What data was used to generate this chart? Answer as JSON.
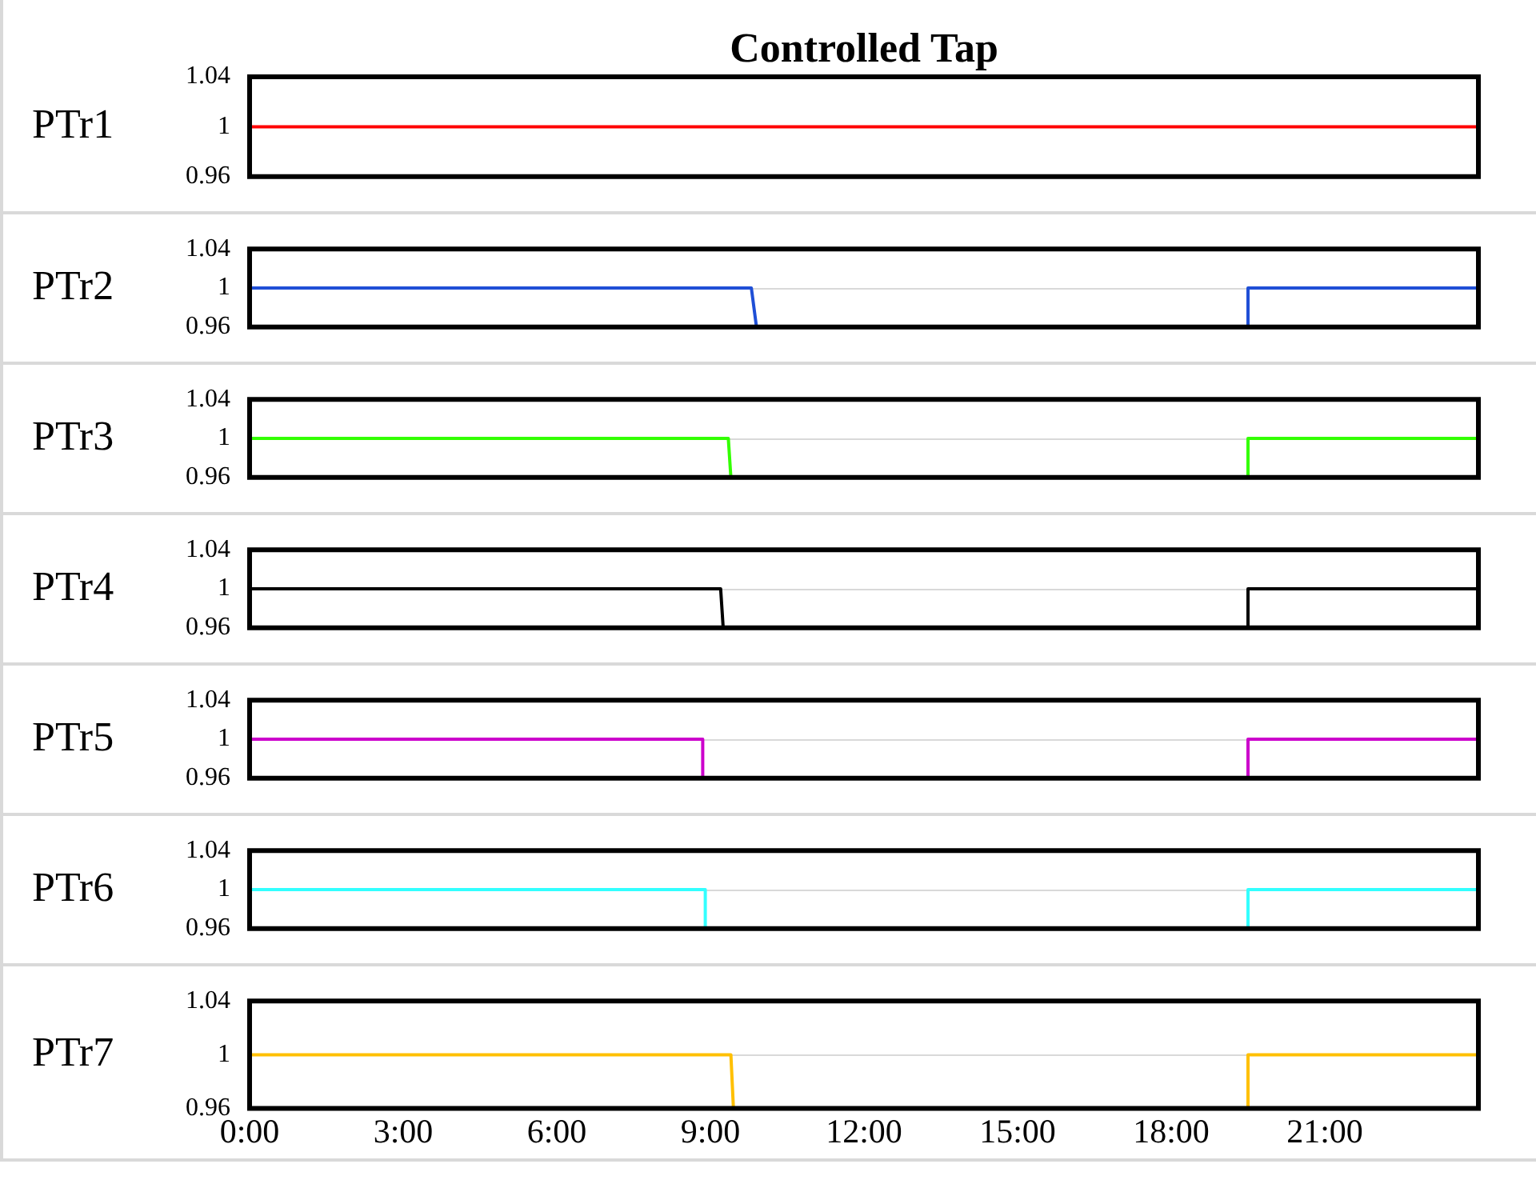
{
  "chart_data": [
    {
      "type": "line",
      "title": "Controlled Tap",
      "ylabel": "PTr1",
      "xlim": [
        0,
        24
      ],
      "ylim": [
        0.96,
        1.04
      ],
      "yticks": [
        0.96,
        1,
        1.04
      ],
      "legend": false,
      "tick_labels": "y",
      "marker": "none",
      "line_style": "solid",
      "series": [
        {
          "color": "#ff0000",
          "x": [
            0,
            24
          ],
          "values": [
            1,
            1
          ]
        }
      ]
    },
    {
      "type": "line",
      "ylabel": "PTr2",
      "xlim": [
        0,
        24
      ],
      "ylim": [
        0.96,
        1.04
      ],
      "yticks": [
        0.96,
        1,
        1.04
      ],
      "grid": "y",
      "legend": false,
      "tick_labels": "y",
      "marker": "none",
      "line_style": "solid",
      "series": [
        {
          "color": "#1f4fd6",
          "x": [
            0,
            9.8,
            9.9,
            19.5,
            19.5,
            24
          ],
          "values": [
            1,
            1,
            0.96,
            0.96,
            1,
            1
          ]
        }
      ]
    },
    {
      "type": "line",
      "ylabel": "PTr3",
      "xlim": [
        0,
        24
      ],
      "ylim": [
        0.96,
        1.04
      ],
      "yticks": [
        0.96,
        1,
        1.04
      ],
      "grid": "y",
      "legend": false,
      "tick_labels": "y",
      "marker": "none",
      "line_style": "solid",
      "series": [
        {
          "color": "#33ff00",
          "x": [
            0,
            9.35,
            9.4,
            19.5,
            19.5,
            24
          ],
          "values": [
            1,
            1,
            0.96,
            0.96,
            1,
            1
          ]
        }
      ]
    },
    {
      "type": "line",
      "ylabel": "PTr4",
      "xlim": [
        0,
        24
      ],
      "ylim": [
        0.96,
        1.04
      ],
      "yticks": [
        0.96,
        1,
        1.04
      ],
      "grid": "y",
      "legend": false,
      "tick_labels": "y",
      "marker": "none",
      "line_style": "solid",
      "series": [
        {
          "color": "#000000",
          "x": [
            0,
            9.2,
            9.25,
            19.5,
            19.5,
            24
          ],
          "values": [
            1,
            1,
            0.96,
            0.96,
            1,
            1
          ]
        }
      ]
    },
    {
      "type": "line",
      "ylabel": "PTr5",
      "xlim": [
        0,
        24
      ],
      "ylim": [
        0.96,
        1.04
      ],
      "yticks": [
        0.96,
        1,
        1.04
      ],
      "grid": "y",
      "legend": false,
      "tick_labels": "y",
      "marker": "none",
      "line_style": "solid",
      "series": [
        {
          "color": "#cc00cc",
          "x": [
            0,
            8.85,
            8.85,
            19.5,
            19.5,
            24
          ],
          "values": [
            1,
            1,
            0.96,
            0.96,
            1,
            1
          ]
        }
      ]
    },
    {
      "type": "line",
      "ylabel": "PTr6",
      "xlim": [
        0,
        24
      ],
      "ylim": [
        0.96,
        1.04
      ],
      "yticks": [
        0.96,
        1,
        1.04
      ],
      "grid": "y",
      "legend": false,
      "tick_labels": "y",
      "marker": "none",
      "line_style": "solid",
      "series": [
        {
          "color": "#33ffff",
          "x": [
            0,
            8.9,
            8.9,
            19.5,
            19.5,
            24
          ],
          "values": [
            1,
            1,
            0.96,
            0.96,
            1,
            1
          ]
        }
      ]
    },
    {
      "type": "line",
      "ylabel": "PTr7",
      "xlim": [
        0,
        24
      ],
      "xticks": [
        {
          "value": 0,
          "label": "0:00"
        },
        {
          "value": 3,
          "label": "3:00"
        },
        {
          "value": 6,
          "label": "6:00"
        },
        {
          "value": 9,
          "label": "9:00"
        },
        {
          "value": 12,
          "label": "12:00"
        },
        {
          "value": 15,
          "label": "15:00"
        },
        {
          "value": 18,
          "label": "18:00"
        },
        {
          "value": 21,
          "label": "21:00"
        }
      ],
      "ylim": [
        0.96,
        1.04
      ],
      "yticks": [
        0.96,
        1,
        1.04
      ],
      "grid": "y",
      "legend": false,
      "marker": "none",
      "line_style": "solid",
      "series": [
        {
          "color": "#ffc000",
          "x": [
            0,
            9.4,
            9.45,
            19.5,
            19.5,
            24
          ],
          "values": [
            1,
            1,
            0.96,
            0.96,
            1,
            1
          ]
        }
      ]
    }
  ]
}
